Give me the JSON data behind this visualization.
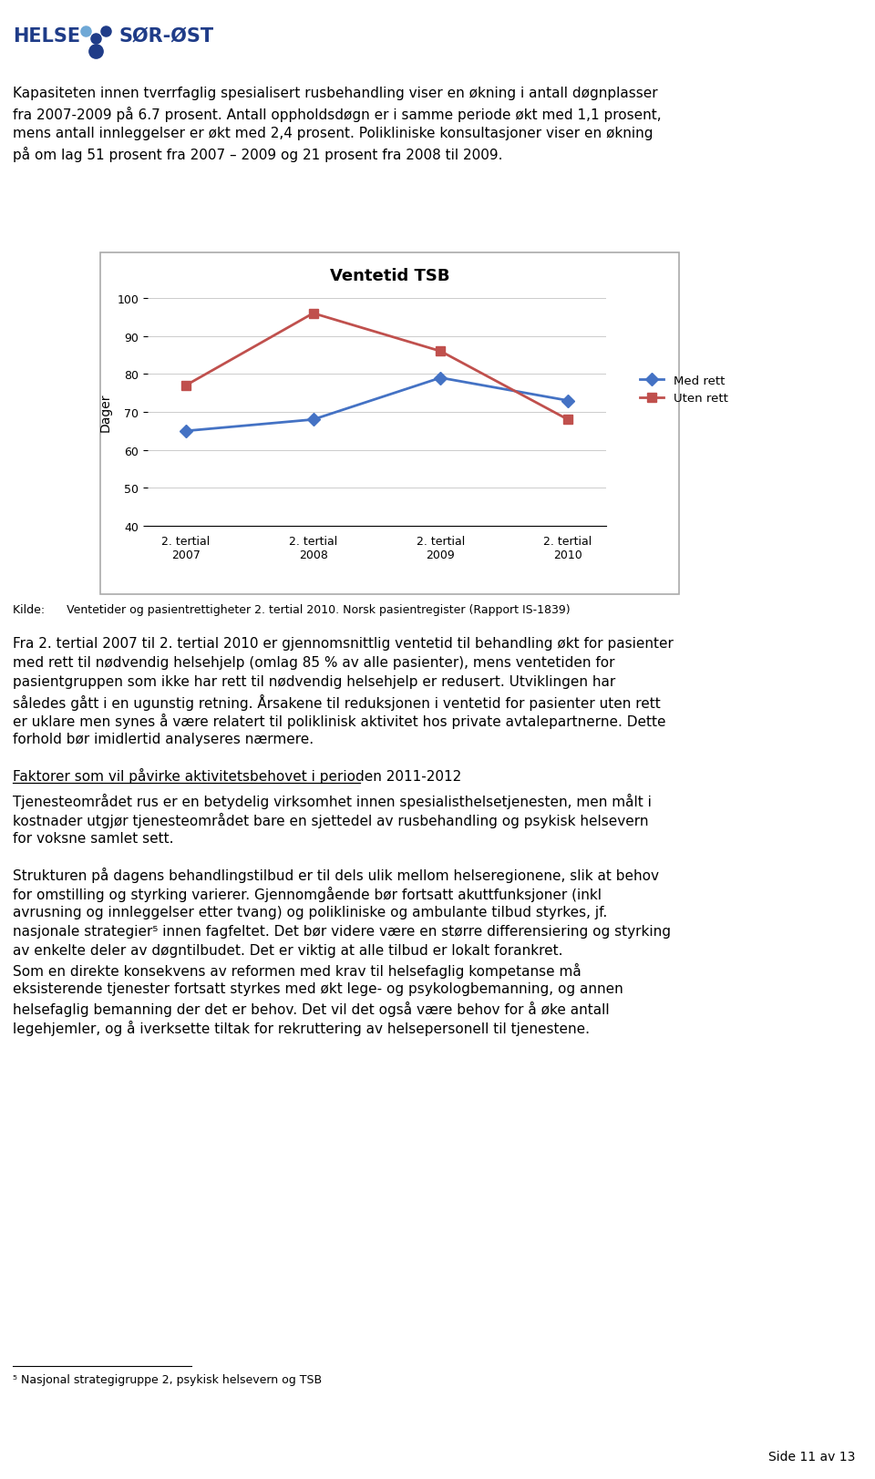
{
  "title": "Ventetid TSB",
  "x_labels": [
    "2. tertial\n2007",
    "2. tertial\n2008",
    "2. tertial\n2009",
    "2. tertial\n2010"
  ],
  "med_rett": [
    65,
    68,
    79,
    73
  ],
  "uten_rett": [
    77,
    96,
    86,
    68
  ],
  "med_rett_color": "#4472C4",
  "uten_rett_color": "#C0504D",
  "ylim": [
    40,
    100
  ],
  "yticks": [
    40,
    50,
    60,
    70,
    80,
    90,
    100
  ],
  "ylabel": "Dager",
  "legend_med": "Med rett",
  "legend_uten": "Uten rett",
  "source_text": "Kilde:      Ventetider og pasientrettigheter 2. tertial 2010. Norsk pasientregister (Rapport IS-1839)",
  "header_text": "Kapasiteten innen tverrfaglig spesialisert rusbehandling viser en økning i antall døgnplasser\nfra 2007-2009 på 6.7 prosent. Antall oppholdsdøgn er i samme periode økt med 1,1 prosent,\nmens antall innleggelser er økt med 2,4 prosent. Polikliniske konsultasjoner viser en økning\npå om lag 51 prosent fra 2007 – 2009 og 21 prosent fra 2008 til 2009.",
  "body_text1": "Fra 2. tertial 2007 til 2. tertial 2010 er gjennomsnittlig ventetid til behandling økt for pasienter\nmed rett til nødvendig helsehjelp (omlag 85 % av alle pasienter), mens ventetiden for\npasientgruppen som ikke har rett til nødvendig helsehjelp er redusert. Utviklingen har\nsåledes gått i en ugunstig retning. Årsakene til reduksjonen i ventetid for pasienter uten rett\ner uklare men synes å være relatert til poliklinisk aktivitet hos private avtalepartnerne. Dette\nforhold bør imidlertid analyseres nærmere.",
  "underline_heading": "Faktorer som vil påvirke aktivitetsbehovet i perioden 2011-2012",
  "body_text2": "Tjenesteområdet rus er en betydelig virksomhet innen spesialisthelsetjenesten, men målt i\nkostnader utgjør tjenesteområdet bare en sjettedel av rusbehandling og psykisk helsevern\nfor voksne samlet sett.",
  "body_text3": "Strukturen på dagens behandlingstilbud er til dels ulik mellom helseregionene, slik at behov\nfor omstilling og styrking varierer. Gjennomgående bør fortsatt akuttfunksjoner (inkl\navrusning og innleggelser etter tvang) og polikliniske og ambulante tilbud styrkes, jf.\nnasjonale strategier⁵ innen fagfeltet. Det bør videre være en større differensiering og styrking\nav enkelte deler av døgntilbudet. Det er viktig at alle tilbud er lokalt forankret.\nSom en direkte konsekvens av reformen med krav til helsefaglig kompetanse må\neksisterende tjenester fortsatt styrkes med økt lege- og psykologbemanning, og annen\nhelsefaglig bemanning der det er behov. Det vil det også være behov for å øke antall\nlegehjemler, og å iverksette tiltak for rekruttering av helsepersonell til tjenestene.",
  "footnote": "⁵ Nasjonal strategigruppe 2, psykisk helsevern og TSB",
  "page_text": "Side 11 av 13",
  "background_color": "#ffffff"
}
